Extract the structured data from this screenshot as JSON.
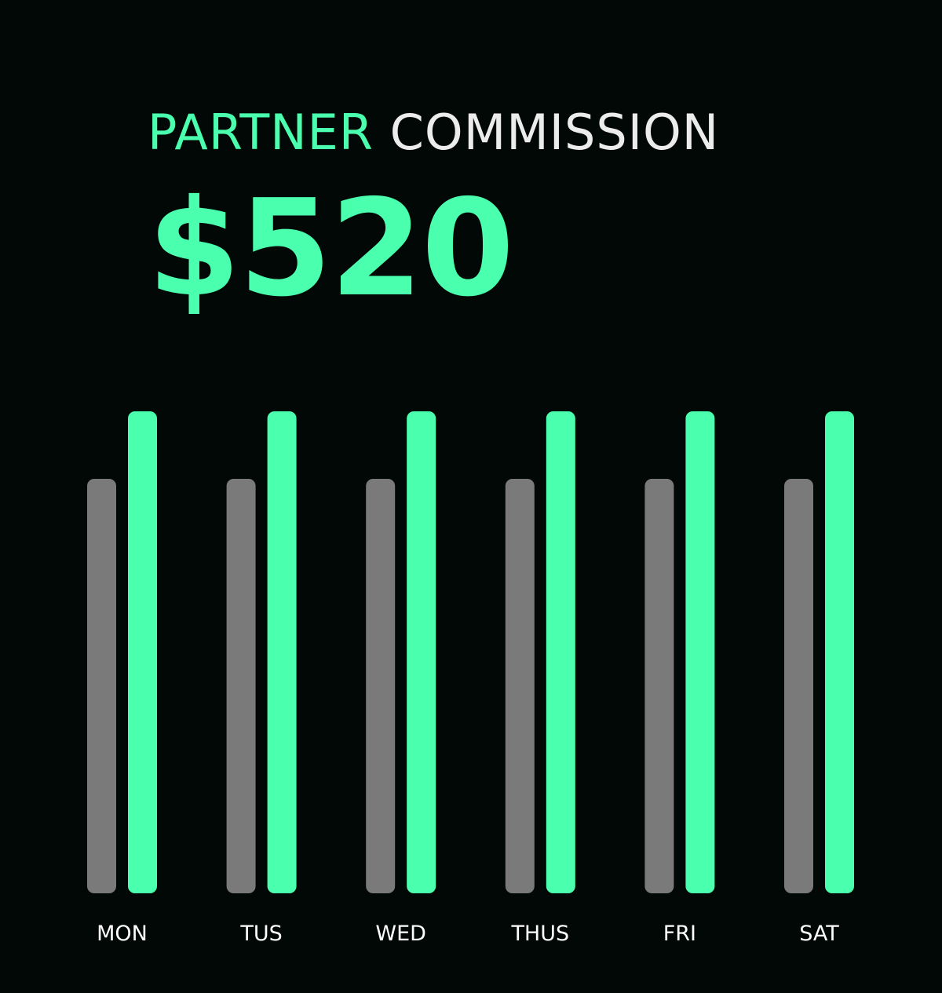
{
  "header": {
    "title_accent": "PARTNER",
    "title_rest": "COMMISSION",
    "amount": "$520"
  },
  "chart_data": {
    "type": "bar",
    "categories": [
      "MON",
      "TUS",
      "WED",
      "THUS",
      "FRI",
      "SAT"
    ],
    "series": [
      {
        "values": [
          86,
          86,
          86,
          86,
          86,
          86
        ],
        "color": "#7a7a7a"
      },
      {
        "values": [
          100,
          100,
          100,
          100,
          100,
          100
        ],
        "color": "#4affad"
      }
    ],
    "ylim": [
      0,
      100
    ],
    "grid": false,
    "title": "",
    "xlabel": "",
    "ylabel": ""
  }
}
